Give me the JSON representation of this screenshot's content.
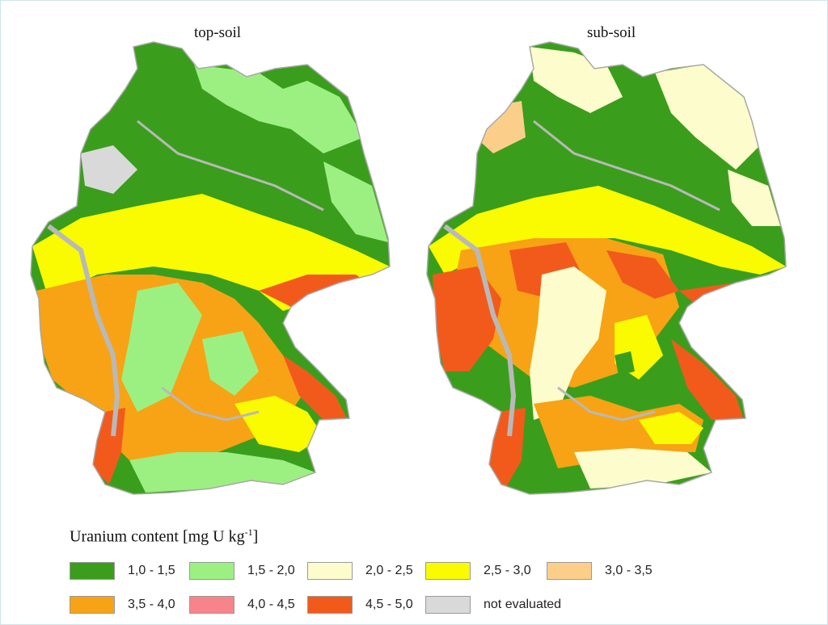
{
  "maps": {
    "top": {
      "title": "top-soil"
    },
    "sub": {
      "title": "sub-soil"
    }
  },
  "legend": {
    "title_prefix": "Uranium content [mg U kg",
    "title_exp": "-1",
    "title_suffix": "]",
    "items": [
      {
        "label": "1,0 - 1,5",
        "color": "#3a9e1c"
      },
      {
        "label": "1,5 - 2,0",
        "color": "#9cf081"
      },
      {
        "label": "2,0 - 2,5",
        "color": "#fdfccc"
      },
      {
        "label": "2,5 - 3,0",
        "color": "#fafa00"
      },
      {
        "label": "3,0 - 3,5",
        "color": "#fbcf8a"
      },
      {
        "label": "3,5 - 4,0",
        "color": "#f7a315"
      },
      {
        "label": "4,0 - 4,5",
        "color": "#f7848a"
      },
      {
        "label": "4,5 - 5,0",
        "color": "#f25a1c"
      },
      {
        "label": "not evaluated",
        "color": "#d9d9d9"
      }
    ]
  },
  "colors": {
    "border": "#a8a8a8",
    "river": "#b9b9b9"
  }
}
